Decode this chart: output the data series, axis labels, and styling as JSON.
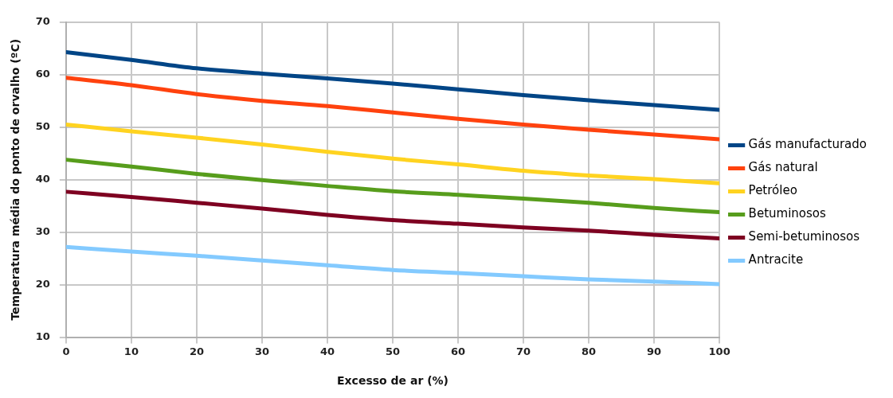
{
  "chart_data": {
    "type": "line",
    "xlabel": "Excesso de ar (%)",
    "ylabel": "Temperatura média do ponto de orvalho (ºC)",
    "x": [
      0,
      10,
      20,
      30,
      40,
      50,
      60,
      70,
      80,
      90,
      100
    ],
    "xlim": [
      0,
      100
    ],
    "xticks": [
      0,
      10,
      20,
      30,
      40,
      50,
      60,
      70,
      80,
      90,
      100
    ],
    "ylim": [
      10,
      70
    ],
    "yticks": [
      10,
      20,
      30,
      40,
      50,
      60,
      70
    ],
    "grid": true,
    "legend": "right",
    "marker": "none",
    "line_style": "solid",
    "series": [
      {
        "name": "Gás manufacturado",
        "color": "#004586",
        "values": [
          64.3,
          62.8,
          61.2,
          60.2,
          59.3,
          58.3,
          57.2,
          56.1,
          55.1,
          54.2,
          53.3
        ]
      },
      {
        "name": "Gás natural",
        "color": "#ff420e",
        "values": [
          59.4,
          58,
          56.3,
          55,
          54,
          52.8,
          51.6,
          50.5,
          49.5,
          48.6,
          47.7
        ]
      },
      {
        "name": "Petróleo",
        "color": "#ffd320",
        "values": [
          50.5,
          49.2,
          48,
          46.7,
          45.3,
          44,
          42.9,
          41.7,
          40.8,
          40.1,
          39.3
        ]
      },
      {
        "name": "Betuminosos",
        "color": "#579d1c",
        "values": [
          43.8,
          42.5,
          41.1,
          39.9,
          38.8,
          37.8,
          37.1,
          36.4,
          35.6,
          34.6,
          33.8
        ]
      },
      {
        "name": "Semi-betuminosos",
        "color": "#7e0021",
        "values": [
          37.7,
          36.7,
          35.6,
          34.5,
          33.3,
          32.3,
          31.6,
          30.9,
          30.3,
          29.5,
          28.8
        ]
      },
      {
        "name": "Antracite",
        "color": "#83caff",
        "values": [
          27.2,
          26.3,
          25.5,
          24.6,
          23.7,
          22.8,
          22.2,
          21.6,
          21.0,
          20.6,
          20.1
        ]
      }
    ]
  }
}
